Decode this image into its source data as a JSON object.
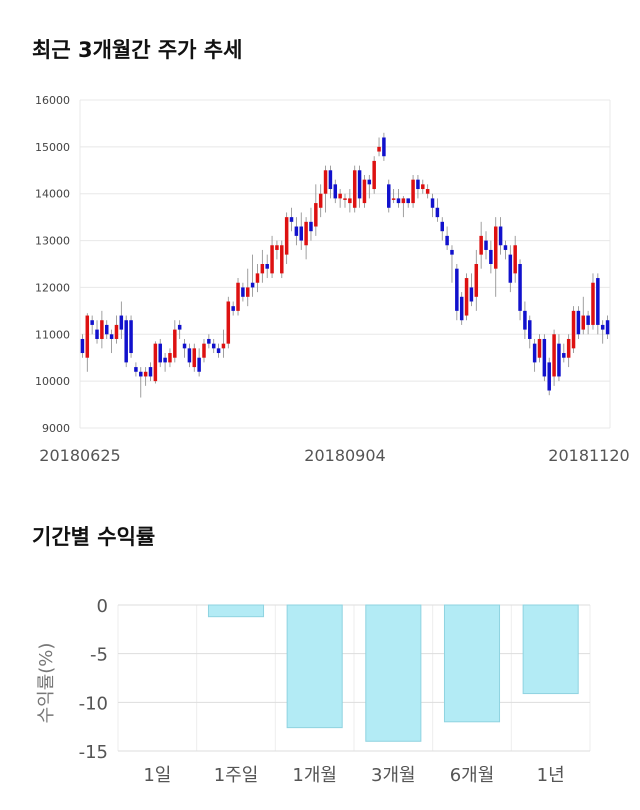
{
  "chart_data": [
    {
      "type": "candlestick",
      "title": "최근 3개월간 주가 추세",
      "ylim": [
        9000,
        16000
      ],
      "y_ticks": [
        "16000",
        "15000",
        "14000",
        "13000",
        "12000",
        "11000",
        "10000",
        "9000"
      ],
      "x_tick_labels": [
        "20180625",
        "20180904",
        "20181120"
      ],
      "grid": true,
      "up_color": "#dd1111",
      "down_color": "#1111cc",
      "candles": [
        [
          10900,
          10600,
          11000,
          10500
        ],
        [
          10500,
          11400,
          11450,
          10200
        ],
        [
          11300,
          11200,
          11400,
          11000
        ],
        [
          11100,
          10900,
          11300,
          10800
        ],
        [
          10900,
          11300,
          11500,
          10700
        ],
        [
          11200,
          11000,
          11300,
          10900
        ],
        [
          11000,
          10900,
          11100,
          10600
        ],
        [
          10900,
          11200,
          11400,
          10800
        ],
        [
          11400,
          11100,
          11700,
          10900
        ],
        [
          11300,
          10400,
          11400,
          10300
        ],
        [
          11300,
          10600,
          11400,
          10500
        ],
        [
          10300,
          10200,
          10400,
          10100
        ],
        [
          10200,
          10100,
          10300,
          9650
        ],
        [
          10100,
          10200,
          10300,
          9900
        ],
        [
          10300,
          10100,
          10400,
          10000
        ],
        [
          10000,
          10800,
          10850,
          9950
        ],
        [
          10800,
          10400,
          10900,
          10300
        ],
        [
          10500,
          10400,
          10600,
          10200
        ],
        [
          10400,
          10600,
          10700,
          10300
        ],
        [
          10500,
          11100,
          11300,
          10400
        ],
        [
          11200,
          11100,
          11300,
          10900
        ],
        [
          10800,
          10700,
          10900,
          10500
        ],
        [
          10700,
          10400,
          10800,
          10300
        ],
        [
          10300,
          10700,
          10800,
          10200
        ],
        [
          10500,
          10200,
          10700,
          10100
        ],
        [
          10500,
          10800,
          10900,
          10400
        ],
        [
          10900,
          10800,
          11000,
          10700
        ],
        [
          10800,
          10700,
          10900,
          10600
        ],
        [
          10700,
          10600,
          10800,
          10500
        ],
        [
          10700,
          10800,
          11100,
          10500
        ],
        [
          10800,
          11700,
          11800,
          10700
        ],
        [
          11600,
          11500,
          11700,
          11400
        ],
        [
          11500,
          12100,
          12200,
          11400
        ],
        [
          12000,
          11800,
          12100,
          11700
        ],
        [
          11800,
          12000,
          12400,
          11600
        ],
        [
          12100,
          12000,
          12700,
          11800
        ],
        [
          12100,
          12300,
          12500,
          11900
        ],
        [
          12300,
          12500,
          12800,
          12100
        ],
        [
          12500,
          12400,
          12700,
          12200
        ],
        [
          12300,
          12900,
          13100,
          12200
        ],
        [
          12800,
          12900,
          13000,
          12600
        ],
        [
          12300,
          12900,
          13000,
          12200
        ],
        [
          12700,
          13500,
          13600,
          12500
        ],
        [
          13500,
          13400,
          13700,
          13200
        ],
        [
          13300,
          13100,
          13500,
          12900
        ],
        [
          13300,
          13000,
          13600,
          12800
        ],
        [
          12900,
          13400,
          13500,
          12600
        ],
        [
          13400,
          13200,
          13700,
          13000
        ],
        [
          13300,
          13800,
          14200,
          13100
        ],
        [
          13700,
          14000,
          14200,
          13500
        ],
        [
          14000,
          14500,
          14600,
          13600
        ],
        [
          14500,
          14100,
          14600,
          13900
        ],
        [
          14200,
          13900,
          14300,
          13800
        ],
        [
          13900,
          14000,
          14100,
          13700
        ],
        [
          13900,
          13900,
          14000,
          13700
        ],
        [
          13800,
          13900,
          14100,
          13600
        ],
        [
          13700,
          14500,
          14600,
          13600
        ],
        [
          14500,
          13900,
          14600,
          13700
        ],
        [
          13800,
          14300,
          14400,
          13700
        ],
        [
          14300,
          14200,
          14400,
          13900
        ],
        [
          14100,
          14700,
          14800,
          14000
        ],
        [
          14900,
          15000,
          15200,
          14800
        ],
        [
          15200,
          14800,
          15300,
          14700
        ],
        [
          14200,
          13700,
          14300,
          13600
        ],
        [
          13900,
          13900,
          14100,
          13800
        ],
        [
          13900,
          13800,
          14100,
          13700
        ],
        [
          13800,
          13900,
          13950,
          13500
        ],
        [
          13900,
          13800,
          13900,
          13700
        ],
        [
          13800,
          14300,
          14400,
          13700
        ],
        [
          14300,
          14100,
          14400,
          13900
        ],
        [
          14100,
          14200,
          14300,
          14000
        ],
        [
          14000,
          14100,
          14200,
          13900
        ],
        [
          13900,
          13700,
          14000,
          13500
        ],
        [
          13700,
          13500,
          13900,
          13400
        ],
        [
          13400,
          13200,
          13500,
          13000
        ],
        [
          13100,
          12900,
          13300,
          12800
        ],
        [
          12800,
          12700,
          12900,
          12100
        ],
        [
          12400,
          11500,
          12500,
          11300
        ],
        [
          11800,
          11300,
          11900,
          11200
        ],
        [
          11400,
          12200,
          12300,
          11300
        ],
        [
          12000,
          11700,
          12300,
          11600
        ],
        [
          11800,
          12500,
          12800,
          11500
        ],
        [
          12700,
          13100,
          13400,
          12400
        ],
        [
          13000,
          12800,
          13200,
          12600
        ],
        [
          12800,
          12500,
          13000,
          12300
        ],
        [
          12400,
          13300,
          13500,
          11800
        ],
        [
          13300,
          12900,
          13500,
          12700
        ],
        [
          12900,
          12800,
          13000,
          12600
        ],
        [
          12700,
          12100,
          12900,
          11900
        ],
        [
          12300,
          12900,
          13100,
          12100
        ],
        [
          12500,
          11500,
          12600,
          11300
        ],
        [
          11500,
          11100,
          11700,
          10900
        ],
        [
          11300,
          10900,
          11400,
          10700
        ],
        [
          10800,
          10400,
          10900,
          10200
        ],
        [
          10500,
          10900,
          11000,
          10400
        ],
        [
          10900,
          10100,
          11000,
          10000
        ],
        [
          10400,
          9800,
          10500,
          9700
        ],
        [
          10100,
          11000,
          11100,
          9900
        ],
        [
          10800,
          10100,
          11000,
          10000
        ],
        [
          10600,
          10500,
          10800,
          10400
        ],
        [
          10500,
          10900,
          11000,
          10300
        ],
        [
          10700,
          11500,
          11600,
          10600
        ],
        [
          11500,
          11000,
          11600,
          10900
        ],
        [
          11100,
          11400,
          11800,
          11000
        ],
        [
          11400,
          11200,
          11500,
          11000
        ],
        [
          11200,
          12100,
          12300,
          11100
        ],
        [
          12200,
          11200,
          12300,
          11000
        ],
        [
          11200,
          11100,
          11300,
          10800
        ],
        [
          11300,
          11000,
          11400,
          10900
        ]
      ]
    },
    {
      "type": "bar",
      "title": "기간별 수익률",
      "ylabel": "수익률(%)",
      "categories": [
        "1일",
        "1주일",
        "1개월",
        "3개월",
        "6개월",
        "1년"
      ],
      "values": [
        0,
        -1.2,
        -12.6,
        -14,
        -12,
        -9.1
      ],
      "ylim": [
        -15,
        0
      ],
      "y_ticks": [
        "0",
        "-5",
        "-10",
        "-15"
      ],
      "grid": true,
      "bar_color": "#b3ebf5",
      "bar_edge_color": "#8fd3e0"
    }
  ]
}
